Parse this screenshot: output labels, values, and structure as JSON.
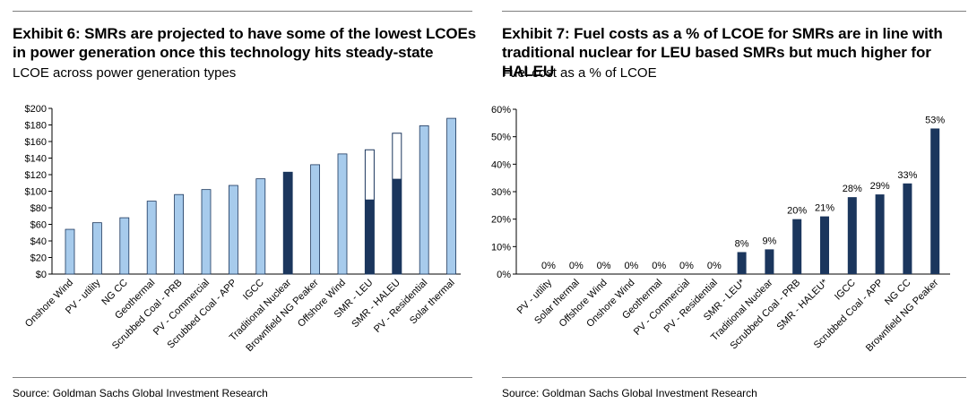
{
  "chart_data": [
    {
      "type": "bar",
      "title": "Exhibit 6: SMRs are projected to have some of the lowest LCOEs in power generation once this technology hits steady-state",
      "subtitle": "LCOE across power generation types",
      "source": "Source: Goldman Sachs Global Investment Research",
      "xlabel": "",
      "ylabel": "",
      "ylim": [
        0,
        200
      ],
      "yticks": [
        "$0",
        "$20",
        "$40",
        "$60",
        "$80",
        "$100",
        "$120",
        "$140",
        "$160",
        "$180",
        "$200"
      ],
      "ytick_values": [
        0,
        20,
        40,
        60,
        80,
        100,
        120,
        140,
        160,
        180,
        200
      ],
      "categories": [
        "Onshore Wind",
        "PV - utility",
        "NG CC",
        "Geothermal",
        "Scrubbed Coal - PRB",
        "PV - Commercial",
        "Scrubbed Coal - APP",
        "IGCC",
        "Traditional Nuclear",
        "Brownfield NG Peaker",
        "Offshore Wind",
        "SMR - LEU",
        "SMR - HALEU",
        "PV - Residential",
        "Solar thermal"
      ],
      "values": [
        54,
        62,
        68,
        88,
        96,
        102,
        107,
        115,
        123,
        132,
        145,
        150,
        170,
        179,
        188
      ],
      "styles": [
        "light",
        "light",
        "light",
        "light",
        "light",
        "light",
        "light",
        "light",
        "dark",
        "light",
        "light",
        "range",
        "range",
        "light",
        "light"
      ],
      "range_base": [
        null,
        null,
        null,
        null,
        null,
        null,
        null,
        null,
        null,
        null,
        null,
        90,
        115,
        null,
        null
      ],
      "colors": {
        "light": "#a7cbec",
        "dark": "#1b365d",
        "outline": "#1b365d"
      }
    },
    {
      "type": "bar",
      "title": "Exhibit 7: Fuel costs as a % of LCOE for SMRs are in line with traditional nuclear for LEU based SMRs but much higher for HALEU",
      "subtitle": "Fuel cost as a % of LCOE",
      "source": "Source: Goldman Sachs Global Investment Research",
      "xlabel": "",
      "ylabel": "",
      "ylim": [
        0,
        60
      ],
      "yticks": [
        "0%",
        "10%",
        "20%",
        "30%",
        "40%",
        "50%",
        "60%"
      ],
      "ytick_values": [
        0,
        10,
        20,
        30,
        40,
        50,
        60
      ],
      "categories": [
        "PV - utility",
        "Solar thermal",
        "Offshore Wind",
        "Onshore Wind",
        "Geothermal",
        "PV - Commercial",
        "PV - Residential",
        "SMR - LEU*",
        "Traditional Nuclear",
        "Scrubbed Coal - PRB",
        "SMR - HALEU*",
        "IGCC",
        "Scrubbed Coal - APP",
        "NG CC",
        "Brownfield NG Peaker"
      ],
      "values": [
        0,
        0,
        0,
        0,
        0,
        0,
        0,
        8,
        9,
        20,
        21,
        28,
        29,
        33,
        53
      ],
      "data_labels": [
        "0%",
        "0%",
        "0%",
        "0%",
        "0%",
        "0%",
        "0%",
        "8%",
        "9%",
        "20%",
        "21%",
        "28%",
        "29%",
        "33%",
        "53%"
      ],
      "colors": {
        "bar": "#1b365d"
      }
    }
  ]
}
